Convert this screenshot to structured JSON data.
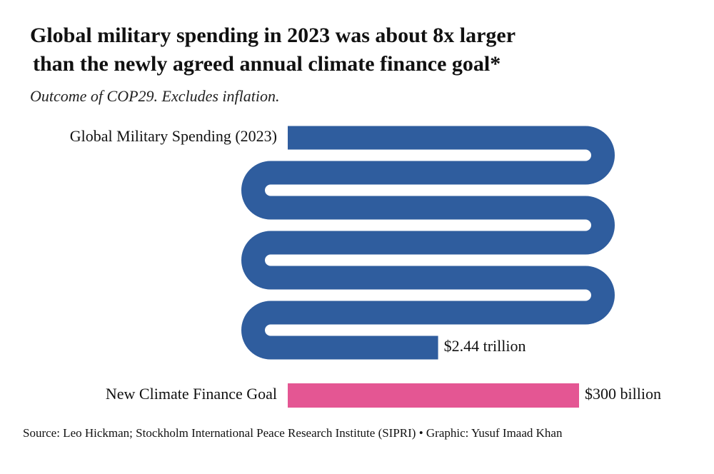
{
  "chart_data": {
    "type": "bar",
    "title": [
      "Global military spending in 2023 was about 8x larger",
      "than the newly agreed annual climate finance goal*"
    ],
    "subtitle": "Outcome of COP29. Excludes inflation.",
    "categories": [
      "Global Military Spending (2023)",
      "New Climate Finance Goal"
    ],
    "values": [
      2440,
      300
    ],
    "value_labels": [
      "$2.44 trillion",
      "$300 billion"
    ],
    "colors": [
      "#2f5d9e",
      "#e45693"
    ],
    "source": "Source: Leo Hickman; Stockholm International Peace Research Institute (SIPRI) • Graphic: Yusuf Imaad Khan"
  }
}
